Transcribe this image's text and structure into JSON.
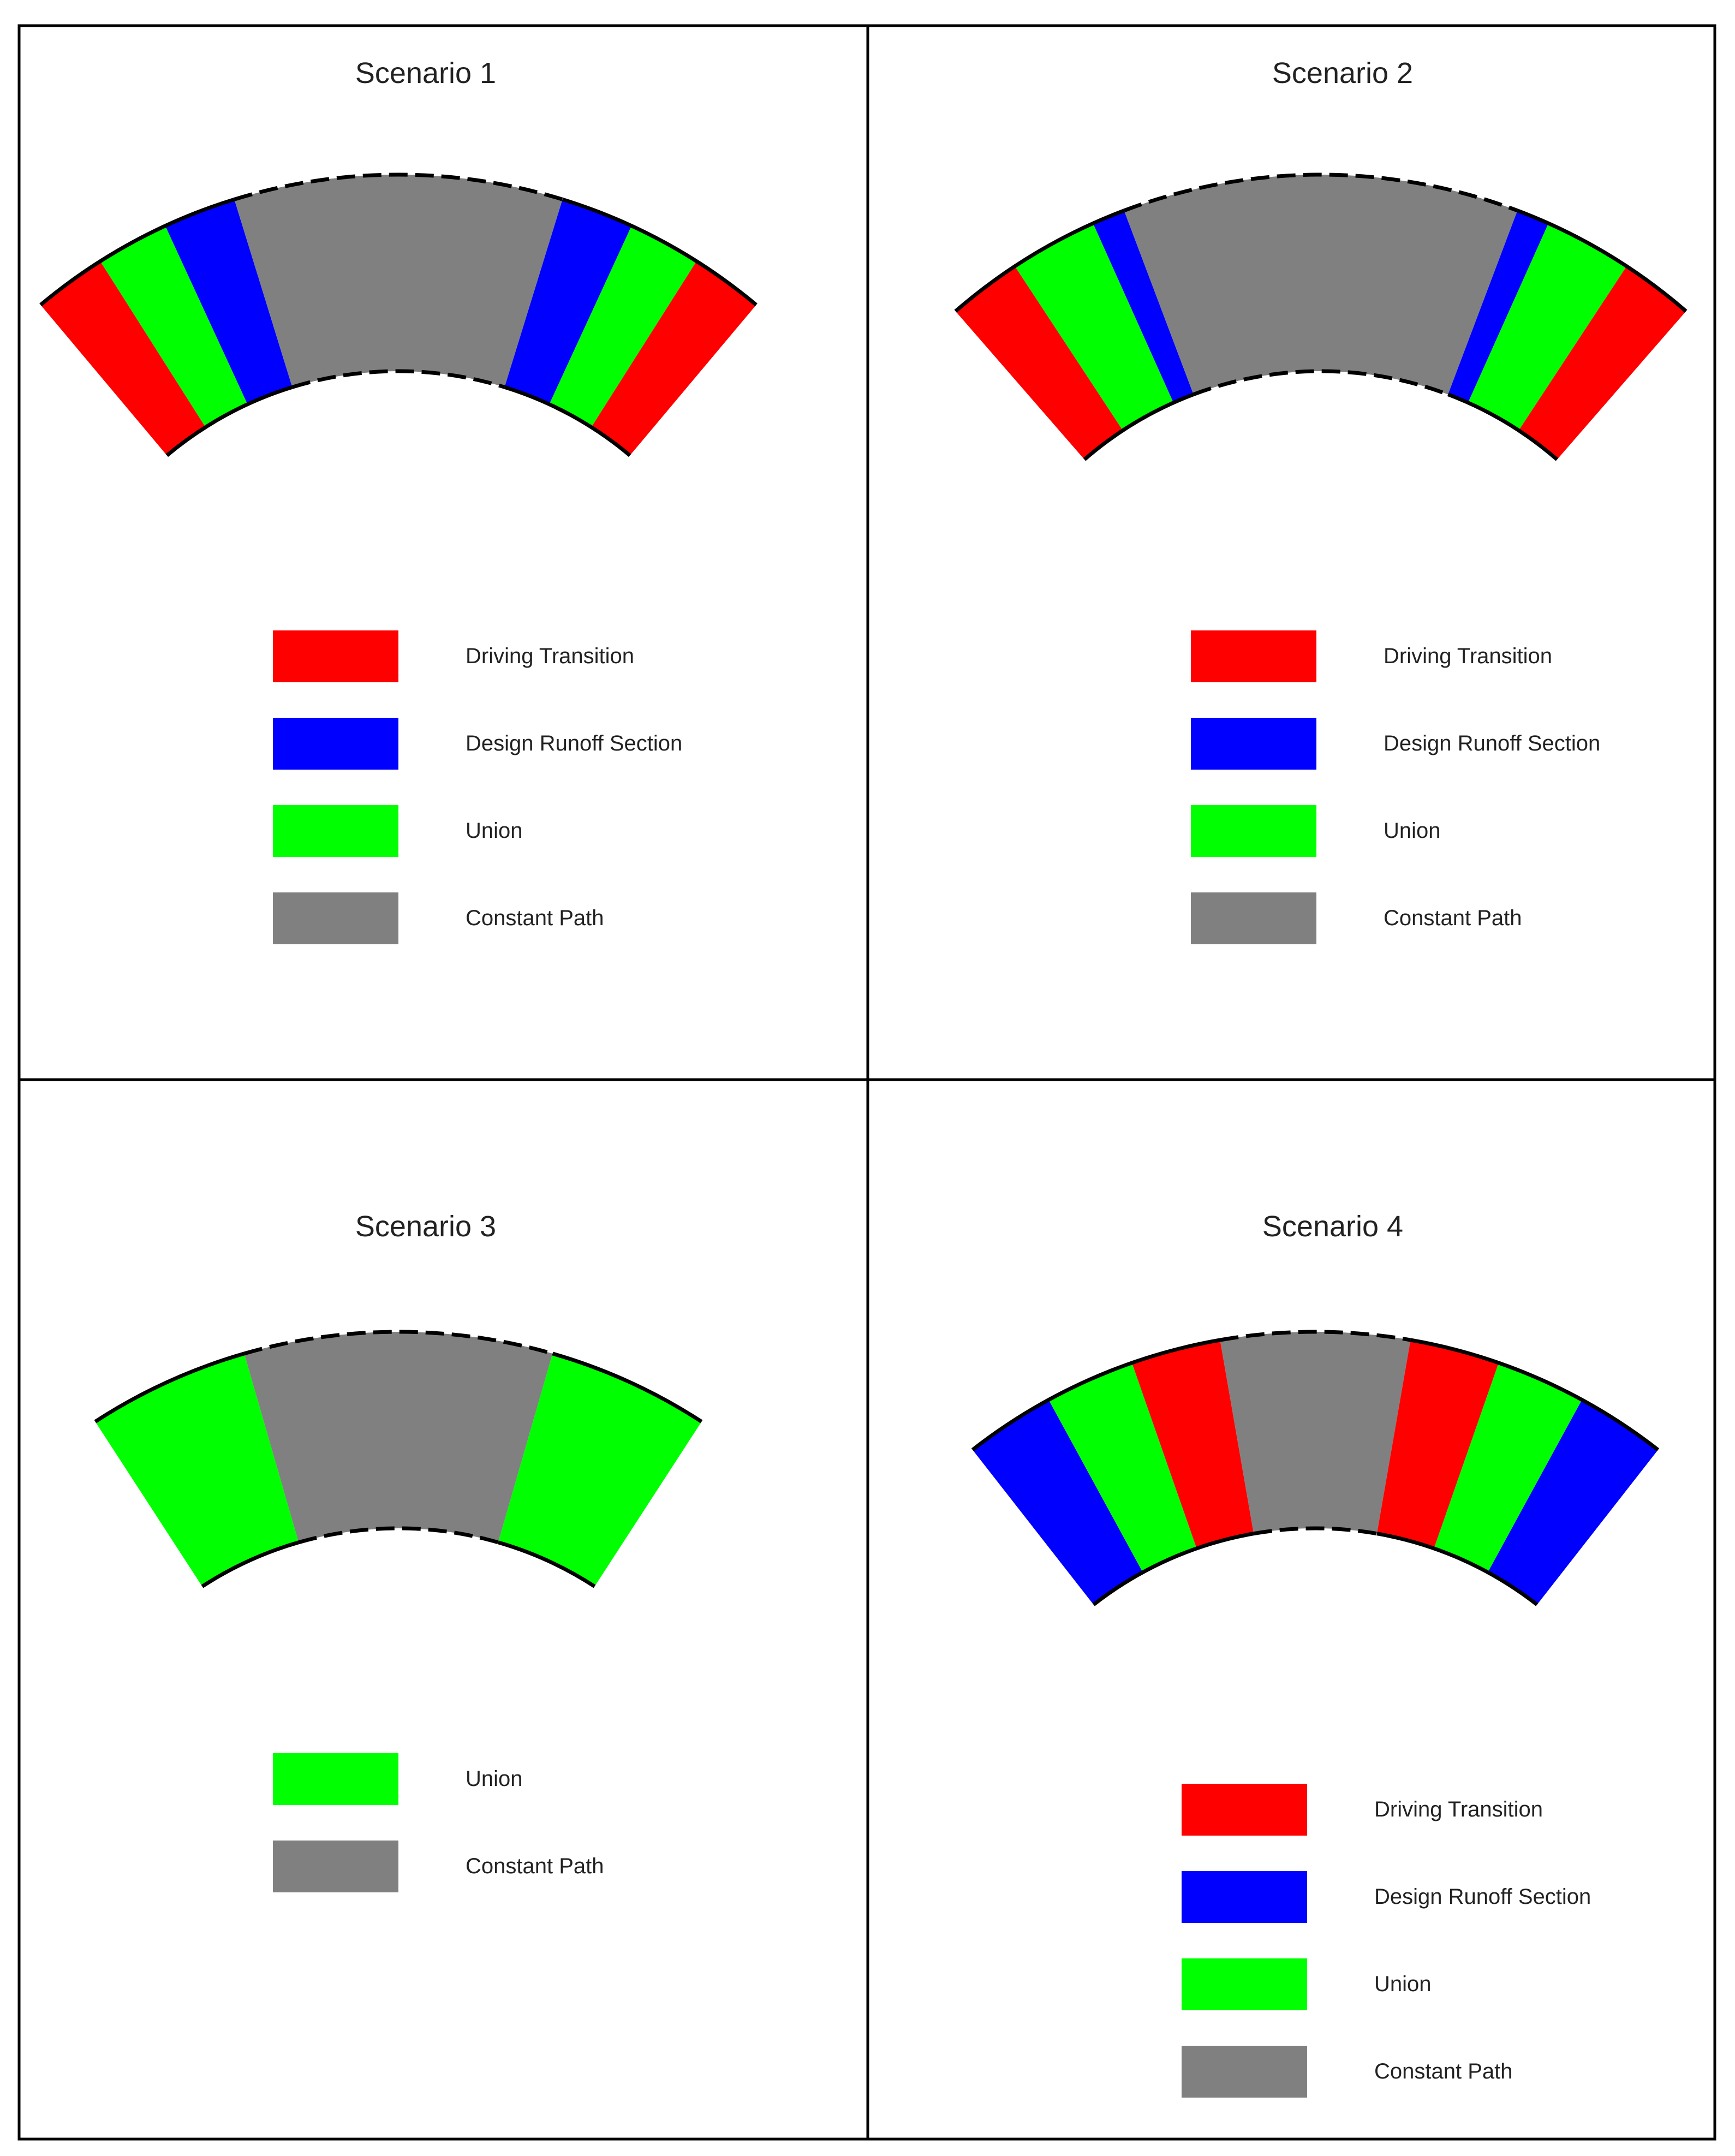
{
  "colors": {
    "driving_transition": "#ff0000",
    "design_runoff": "#0000ff",
    "union": "#00ff00",
    "constant_path": "#808080",
    "outline": "#000000"
  },
  "panels": [
    {
      "title": "Scenario 1",
      "segments": [
        "driving_transition",
        "union",
        "design_runoff",
        "constant_path",
        "design_runoff",
        "union",
        "driving_transition"
      ],
      "weights": [
        1,
        1,
        1,
        4.5,
        1,
        1,
        1
      ],
      "legend": [
        {
          "key": "driving_transition",
          "label": "Driving Transition"
        },
        {
          "key": "design_runoff",
          "label": "Design Runoff Section"
        },
        {
          "key": "union",
          "label": "Union"
        },
        {
          "key": "constant_path",
          "label": "Constant Path"
        }
      ]
    },
    {
      "title": "Scenario 2",
      "segments": [
        "driving_transition",
        "union",
        "design_runoff",
        "constant_path",
        "design_runoff",
        "union",
        "driving_transition"
      ],
      "weights": [
        1,
        1.2,
        0.45,
        5.4,
        0.45,
        1.2,
        1
      ],
      "legend": [
        {
          "key": "driving_transition",
          "label": "Driving Transition"
        },
        {
          "key": "design_runoff",
          "label": "Design Runoff Section"
        },
        {
          "key": "union",
          "label": "Union"
        },
        {
          "key": "constant_path",
          "label": "Constant Path"
        }
      ]
    },
    {
      "title": "Scenario 3",
      "segments": [
        "union",
        "constant_path",
        "union"
      ],
      "weights": [
        1,
        1.9,
        1
      ],
      "legend": [
        {
          "key": "union",
          "label": "Union"
        },
        {
          "key": "constant_path",
          "label": "Constant Path"
        }
      ]
    },
    {
      "title": "Scenario 4",
      "segments": [
        "design_runoff",
        "union",
        "driving_transition",
        "constant_path",
        "driving_transition",
        "union",
        "design_runoff"
      ],
      "weights": [
        1,
        1,
        1,
        2.1,
        1,
        1,
        1
      ],
      "legend": [
        {
          "key": "driving_transition",
          "label": "Driving Transition"
        },
        {
          "key": "design_runoff",
          "label": "Design Runoff Section"
        },
        {
          "key": "union",
          "label": "Union"
        },
        {
          "key": "constant_path",
          "label": "Constant Path"
        }
      ]
    }
  ]
}
